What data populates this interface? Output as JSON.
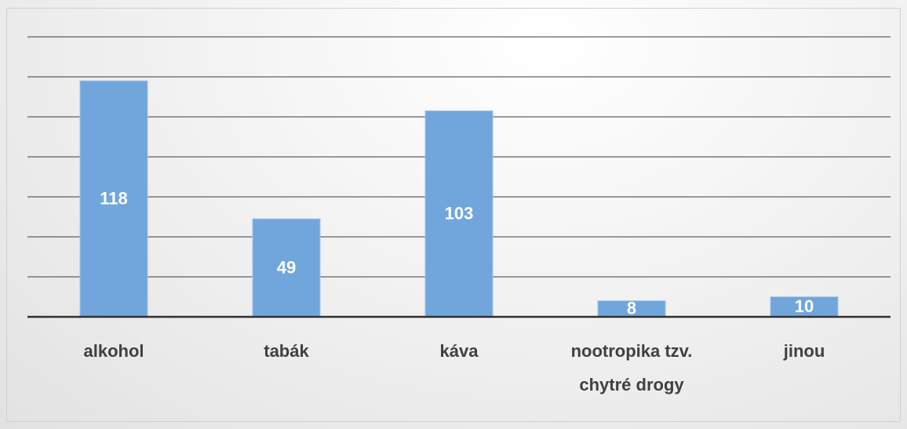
{
  "chart_data": {
    "type": "bar",
    "categories": [
      "alkohol",
      "tabák",
      "káva",
      "nootropika tzv. chytré drogy",
      "jinou"
    ],
    "values": [
      118,
      49,
      103,
      8,
      10
    ],
    "color": "#70a6dc",
    "ylim": [
      0,
      140
    ],
    "yticks": [
      0,
      20,
      40,
      60,
      80,
      100,
      120,
      140
    ],
    "grid": true
  }
}
